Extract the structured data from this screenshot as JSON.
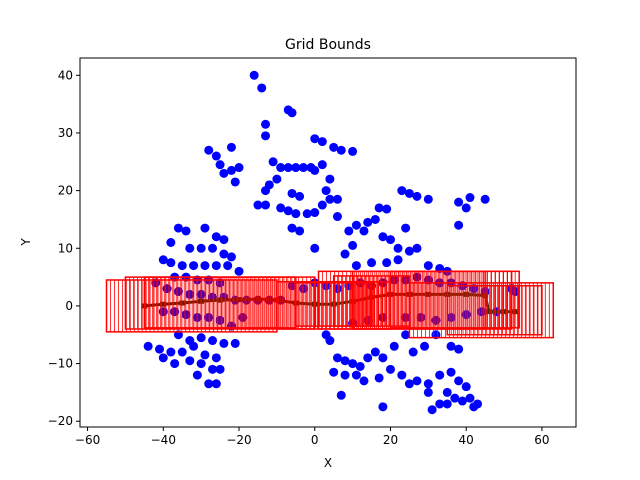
{
  "chart_data": {
    "type": "scatter",
    "title": "Grid Bounds",
    "xlabel": "X",
    "ylabel": "Y",
    "xlim": [
      -62,
      69
    ],
    "ylim": [
      -21,
      43
    ],
    "xticks": [
      -60,
      -40,
      -20,
      0,
      20,
      40,
      60
    ],
    "yticks": [
      -20,
      -10,
      0,
      10,
      20,
      30,
      40
    ],
    "xtick_labels": [
      "−60",
      "−40",
      "−20",
      "0",
      "20",
      "40",
      "60"
    ],
    "ytick_labels": [
      "−20",
      "−10",
      "0",
      "10",
      "20",
      "30",
      "40"
    ],
    "grid": false,
    "legend": "none",
    "colors": {
      "points": "#0000ff",
      "bounds": "#ff0000",
      "path": "#3d2b00"
    },
    "points": [
      [
        -16,
        40
      ],
      [
        -14,
        37.8
      ],
      [
        -13,
        31.5
      ],
      [
        -7,
        34
      ],
      [
        -6,
        33.5
      ],
      [
        -13,
        29.5
      ],
      [
        -28,
        27
      ],
      [
        -26,
        26
      ],
      [
        -22,
        27.5
      ],
      [
        -25,
        24.5
      ],
      [
        -22,
        23.5
      ],
      [
        -20,
        24
      ],
      [
        -24,
        23
      ],
      [
        -21,
        21.5
      ],
      [
        -11,
        25
      ],
      [
        -9,
        24
      ],
      [
        -7,
        24
      ],
      [
        -5,
        24
      ],
      [
        -3,
        24
      ],
      [
        -1,
        24
      ],
      [
        0,
        23.5
      ],
      [
        2,
        24.5
      ],
      [
        -10,
        22
      ],
      [
        -12,
        21
      ],
      [
        -13,
        20
      ],
      [
        -6,
        19.5
      ],
      [
        -4,
        19
      ],
      [
        0,
        29
      ],
      [
        2,
        28.5
      ],
      [
        5,
        27.5
      ],
      [
        7,
        27
      ],
      [
        10,
        26.8
      ],
      [
        4,
        22
      ],
      [
        3,
        20
      ],
      [
        -15,
        17.5
      ],
      [
        -13,
        17.5
      ],
      [
        -9,
        17
      ],
      [
        -7,
        16.5
      ],
      [
        -5,
        16
      ],
      [
        -2,
        16
      ],
      [
        0,
        16.2
      ],
      [
        2,
        17.5
      ],
      [
        4,
        18.5
      ],
      [
        6,
        18.5
      ],
      [
        -6,
        13.5
      ],
      [
        -4,
        13
      ],
      [
        0,
        10
      ],
      [
        6,
        15.5
      ],
      [
        9,
        13
      ],
      [
        11,
        14
      ],
      [
        14,
        14.5
      ],
      [
        16,
        15
      ],
      [
        17,
        17
      ],
      [
        19,
        16.8
      ],
      [
        23,
        20
      ],
      [
        25,
        19.5
      ],
      [
        27,
        19
      ],
      [
        30,
        18.5
      ],
      [
        24,
        13.5
      ],
      [
        13,
        13
      ],
      [
        18,
        12
      ],
      [
        20,
        11.5
      ],
      [
        22,
        10
      ],
      [
        25,
        9.5
      ],
      [
        27,
        10
      ],
      [
        38,
        18
      ],
      [
        40,
        17
      ],
      [
        41,
        18.8
      ],
      [
        45,
        18.5
      ],
      [
        38,
        14
      ],
      [
        10,
        10.5
      ],
      [
        8,
        9
      ],
      [
        11,
        7
      ],
      [
        15,
        7.5
      ],
      [
        19,
        7.5
      ],
      [
        22,
        8
      ],
      [
        30,
        7
      ],
      [
        33,
        6.5
      ],
      [
        35,
        6
      ],
      [
        -36,
        13.5
      ],
      [
        -34,
        13
      ],
      [
        -29,
        13.5
      ],
      [
        -26,
        12
      ],
      [
        -24,
        11.5
      ],
      [
        -38,
        11
      ],
      [
        -33,
        10
      ],
      [
        -30,
        10
      ],
      [
        -27,
        10
      ],
      [
        -24,
        9
      ],
      [
        -22,
        8.5
      ],
      [
        -40,
        8
      ],
      [
        -38,
        7.5
      ],
      [
        -35,
        7
      ],
      [
        -32,
        7
      ],
      [
        -29,
        7
      ],
      [
        -26,
        7
      ],
      [
        -23,
        7
      ],
      [
        -20,
        6
      ],
      [
        -37,
        5
      ],
      [
        -34,
        5
      ],
      [
        -31,
        4.5
      ],
      [
        -28,
        4.5
      ],
      [
        -25,
        4
      ],
      [
        -42,
        4
      ],
      [
        -39,
        3
      ],
      [
        -36,
        2.5
      ],
      [
        -33,
        2
      ],
      [
        -30,
        2
      ],
      [
        -27,
        1.5
      ],
      [
        -24,
        1.5
      ],
      [
        -21,
        1
      ],
      [
        -18,
        1
      ],
      [
        -15,
        1
      ],
      [
        -12,
        1
      ],
      [
        -9,
        1
      ],
      [
        -6,
        3.5
      ],
      [
        -3,
        3
      ],
      [
        0,
        4
      ],
      [
        3,
        3.5
      ],
      [
        6,
        3
      ],
      [
        9,
        3.5
      ],
      [
        12,
        4
      ],
      [
        15,
        3.5
      ],
      [
        18,
        4
      ],
      [
        21,
        4.5
      ],
      [
        24,
        4.5
      ],
      [
        27,
        5
      ],
      [
        30,
        4.5
      ],
      [
        33,
        4
      ],
      [
        36,
        4
      ],
      [
        39,
        3.5
      ],
      [
        42,
        3
      ],
      [
        45,
        2.5
      ],
      [
        52,
        3
      ],
      [
        53,
        2.5
      ],
      [
        -40,
        -1
      ],
      [
        -37,
        -1
      ],
      [
        -34,
        -1.5
      ],
      [
        -31,
        -2
      ],
      [
        -28,
        -2
      ],
      [
        -25,
        -2.5
      ],
      [
        -22,
        -3.5
      ],
      [
        -19,
        -2
      ],
      [
        10,
        -3
      ],
      [
        14,
        -2.5
      ],
      [
        18,
        -2
      ],
      [
        24,
        -2
      ],
      [
        28,
        -2
      ],
      [
        32,
        -2.5
      ],
      [
        36,
        -2
      ],
      [
        40,
        -1.5
      ],
      [
        44,
        -1
      ],
      [
        48,
        -1
      ],
      [
        -36,
        -5
      ],
      [
        -33,
        -6
      ],
      [
        -30,
        -5.5
      ],
      [
        -27,
        -6
      ],
      [
        -24,
        -6.5
      ],
      [
        -21,
        -6.5
      ],
      [
        -44,
        -7
      ],
      [
        -41,
        -7.5
      ],
      [
        -38,
        -8
      ],
      [
        -35,
        -8
      ],
      [
        -32,
        -7
      ],
      [
        -29,
        -8.5
      ],
      [
        -26,
        -9
      ],
      [
        -40,
        -9
      ],
      [
        -37,
        -10
      ],
      [
        -33,
        -9.5
      ],
      [
        -30,
        -10
      ],
      [
        -27,
        -11
      ],
      [
        -31,
        -12
      ],
      [
        -28,
        -13.5
      ],
      [
        -26,
        -13.5
      ],
      [
        -25,
        -11
      ],
      [
        3,
        -5
      ],
      [
        4,
        -6
      ],
      [
        6,
        -9
      ],
      [
        8,
        -9.5
      ],
      [
        10,
        -10
      ],
      [
        12,
        -10.5
      ],
      [
        14,
        -9
      ],
      [
        16,
        -8
      ],
      [
        18,
        -9
      ],
      [
        21,
        -7
      ],
      [
        24,
        -5
      ],
      [
        26,
        -8
      ],
      [
        29,
        -7
      ],
      [
        32,
        -5
      ],
      [
        36,
        -7
      ],
      [
        38,
        -7.5
      ],
      [
        5,
        -11.5
      ],
      [
        8,
        -12
      ],
      [
        11,
        -12
      ],
      [
        13,
        -13
      ],
      [
        17,
        -12.5
      ],
      [
        20,
        -11
      ],
      [
        23,
        -12
      ],
      [
        25,
        -13.5
      ],
      [
        27,
        -13
      ],
      [
        30,
        -13.5
      ],
      [
        33,
        -12
      ],
      [
        36,
        -11.5
      ],
      [
        38,
        -13
      ],
      [
        40,
        -14
      ],
      [
        7,
        -15.5
      ],
      [
        18,
        -17.5
      ],
      [
        31,
        -18
      ],
      [
        33,
        -17
      ],
      [
        35,
        -17
      ],
      [
        37,
        -16
      ],
      [
        39,
        -16.5
      ],
      [
        41,
        -16
      ],
      [
        43,
        -17
      ],
      [
        42,
        -17.5
      ],
      [
        30,
        -15
      ],
      [
        35,
        -15
      ]
    ],
    "path": [
      [
        -45,
        0
      ],
      [
        -40,
        0.3
      ],
      [
        -35,
        0.5
      ],
      [
        -30,
        0.8
      ],
      [
        -25,
        1
      ],
      [
        -20,
        1.1
      ],
      [
        -15,
        1.2
      ],
      [
        -10,
        1
      ],
      [
        -5,
        0.5
      ],
      [
        0,
        0.3
      ],
      [
        5,
        0.3
      ],
      [
        10,
        0.8
      ],
      [
        15,
        1.5
      ],
      [
        20,
        2
      ],
      [
        25,
        2
      ],
      [
        30,
        2
      ],
      [
        35,
        2
      ],
      [
        40,
        2
      ],
      [
        45,
        1.8
      ],
      [
        46,
        -1
      ],
      [
        50,
        -1
      ],
      [
        53,
        -1
      ]
    ],
    "bounds": [
      [
        -55,
        -4.5,
        -10,
        4.5
      ],
      [
        -50,
        -4,
        0,
        5
      ],
      [
        -45,
        -3.8,
        -5,
        5
      ],
      [
        -10,
        -4,
        20,
        4.2
      ],
      [
        -5,
        -3.5,
        15,
        4
      ],
      [
        5,
        -3.5,
        25,
        5.2
      ],
      [
        1,
        -4,
        52,
        6
      ],
      [
        10,
        -4,
        45,
        6
      ],
      [
        20,
        -3.8,
        54,
        6
      ],
      [
        25,
        -5.5,
        63,
        4
      ],
      [
        35,
        -5,
        60,
        3.5
      ]
    ]
  }
}
